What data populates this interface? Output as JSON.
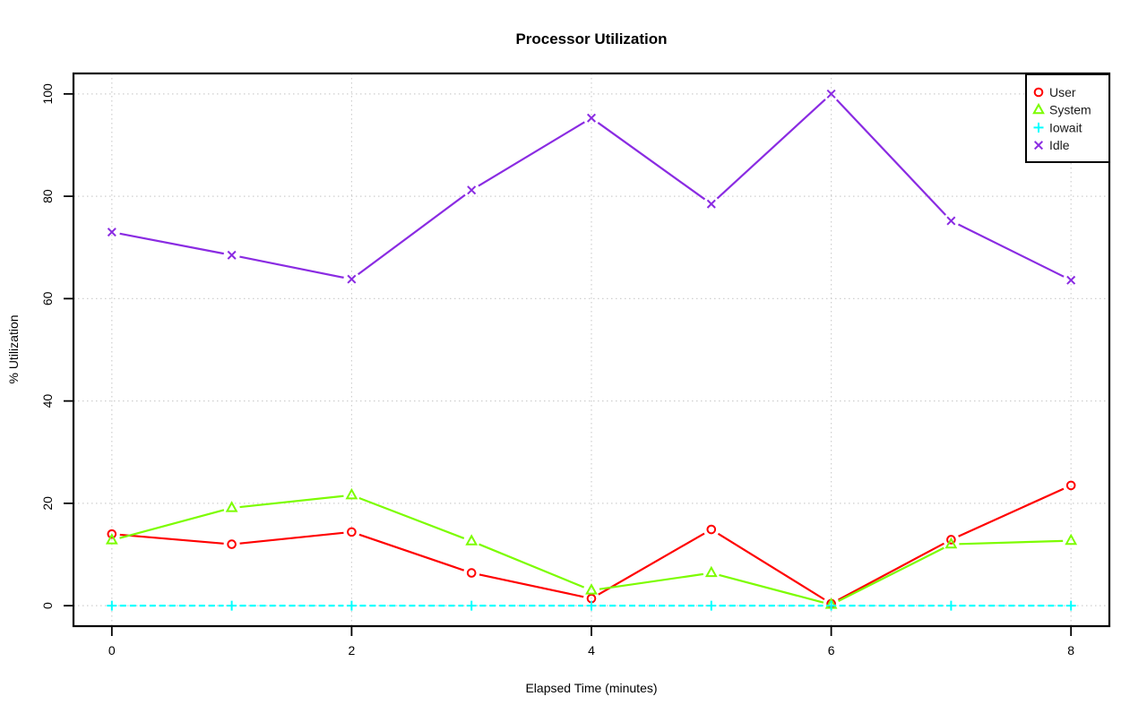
{
  "chart_data": {
    "type": "line",
    "title": "Processor Utilization",
    "xlabel": "Elapsed Time (minutes)",
    "ylabel": "% Utilization",
    "xlim": [
      0,
      8
    ],
    "ylim": [
      0,
      100
    ],
    "x_ticks": [
      0,
      2,
      4,
      6,
      8
    ],
    "y_ticks": [
      0,
      20,
      40,
      60,
      80,
      100
    ],
    "grid": "dotted",
    "legend_position": "topright",
    "x": [
      0,
      1,
      2,
      3,
      4,
      5,
      6,
      7,
      8
    ],
    "series": [
      {
        "name": "User",
        "marker": "circle",
        "color": "#FF0000",
        "line_style": "solid",
        "values": [
          14.0,
          12.0,
          14.4,
          6.4,
          1.4,
          14.9,
          0.4,
          12.9,
          23.5
        ]
      },
      {
        "name": "System",
        "marker": "triangle",
        "color": "#7CFC00",
        "line_style": "solid",
        "values": [
          12.8,
          19.1,
          21.6,
          12.6,
          3.0,
          6.4,
          0.2,
          12.0,
          12.7
        ]
      },
      {
        "name": "Iowait",
        "marker": "plus",
        "color": "#00FFFF",
        "line_style": "dashed",
        "values": [
          0,
          0,
          0,
          0,
          0,
          0,
          0,
          0,
          0
        ]
      },
      {
        "name": "Idle",
        "marker": "x",
        "color": "#8A2BE2",
        "line_style": "solid",
        "values": [
          73.0,
          68.5,
          63.8,
          81.2,
          95.3,
          78.5,
          100.0,
          75.2,
          63.6
        ]
      }
    ]
  },
  "colors": {
    "background": "#FFFFFF",
    "axis": "#000000",
    "grid": "#CFCFCF",
    "text": "#000000",
    "legend_border": "#000000",
    "legend_fill": "#FFFFFF"
  }
}
